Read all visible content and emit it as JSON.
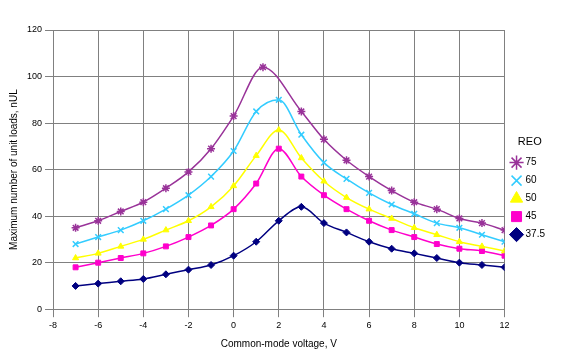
{
  "chart_data": {
    "type": "line",
    "x_label": "Common-mode voltage, V",
    "y_label": "Maximum number of unit loads, nUL",
    "legend_title": "REO",
    "legend": "right",
    "grid": true,
    "xlim": [
      -8,
      12
    ],
    "xticks": [
      -8,
      -6,
      -4,
      -2,
      0,
      2,
      4,
      6,
      8,
      10,
      12
    ],
    "ylim": [
      0,
      120
    ],
    "yticks": [
      0,
      20,
      40,
      60,
      80,
      100,
      120
    ],
    "series": [
      {
        "name": "75",
        "color": "#993399",
        "marker": "star",
        "x": [
          -7,
          -6,
          -5,
          -4,
          -3,
          -2,
          -1,
          0,
          1.3,
          3,
          4,
          5,
          6,
          7,
          8,
          9,
          10,
          11,
          12
        ],
        "values": [
          35,
          38,
          42,
          46,
          52,
          59,
          69,
          83,
          104,
          85,
          73,
          64,
          57,
          51,
          46,
          43,
          39,
          37,
          34
        ]
      },
      {
        "name": "60",
        "color": "#33ccff",
        "marker": "x",
        "x": [
          -7,
          -6,
          -5,
          -4,
          -3,
          -2,
          -1,
          0,
          1,
          2,
          3,
          4,
          5,
          6,
          7,
          8,
          9,
          10,
          11,
          12
        ],
        "values": [
          28,
          31,
          34,
          38,
          43,
          49,
          57,
          68,
          85,
          90,
          75,
          63,
          56,
          50,
          45,
          41,
          37,
          35,
          32,
          29
        ]
      },
      {
        "name": "50",
        "color": "#ffff00",
        "marker": "triangle",
        "x": [
          -7,
          -6,
          -5,
          -4,
          -3,
          -2,
          -1,
          0,
          1,
          2,
          3,
          4,
          5,
          6,
          7,
          8,
          9,
          10,
          11,
          12
        ],
        "values": [
          22,
          24,
          27,
          30,
          34,
          38,
          44,
          53,
          66,
          77,
          65,
          55,
          48,
          43,
          39,
          35,
          32,
          29,
          27,
          25
        ]
      },
      {
        "name": "45",
        "color": "#ff00cc",
        "marker": "square",
        "x": [
          -7,
          -6,
          -5,
          -4,
          -3,
          -2,
          -1,
          0,
          1,
          2,
          3,
          4,
          5,
          6,
          7,
          8,
          9,
          10,
          11,
          12
        ],
        "values": [
          18,
          20,
          22,
          24,
          27,
          31,
          36,
          43,
          54,
          69,
          57,
          49,
          43,
          38,
          34,
          31,
          28,
          26,
          25,
          23
        ]
      },
      {
        "name": "37.5",
        "color": "#000080",
        "marker": "diamond",
        "x": [
          -7,
          -6,
          -5,
          -4,
          -3,
          -2,
          -1,
          0,
          1,
          2,
          3,
          4,
          5,
          6,
          7,
          8,
          9,
          10,
          11,
          12
        ],
        "values": [
          10,
          11,
          12,
          13,
          15,
          17,
          19,
          23,
          29,
          38,
          44,
          37,
          33,
          29,
          26,
          24,
          22,
          20,
          19,
          18
        ]
      }
    ]
  }
}
